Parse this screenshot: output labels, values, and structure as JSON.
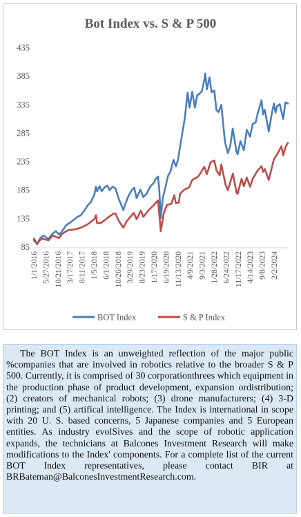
{
  "chart_data": {
    "type": "line",
    "title": "Bot Index vs. S & P 500",
    "ylim": [
      85,
      435
    ],
    "yticks": [
      85,
      135,
      185,
      235,
      285,
      335,
      385,
      435
    ],
    "grid": false,
    "legend_position": "bottom",
    "xtick_labels": [
      "1/1/2016",
      "5/27/2016",
      "10/21/2016",
      "3/17/2017",
      "8/11/2017",
      "1/5/2018",
      "6/1/2018",
      "10/26/2018",
      "3/29/2019",
      "8/23/2019",
      "1/17/2020",
      "6/19/2020",
      "11/13/2020",
      "4/9/2021",
      "9/3/2021",
      "1/28/2022",
      "6/24/2022",
      "11/17/2022",
      "4/14/2023",
      "9/8/2023",
      "2/2/2024"
    ],
    "series": [
      {
        "name": "BOT Index",
        "color": "#4a7ebb",
        "points": [
          [
            "2016-01-01",
            97
          ],
          [
            "2016-02-10",
            90
          ],
          [
            "2016-03-20",
            101
          ],
          [
            "2016-05-01",
            105
          ],
          [
            "2016-06-24",
            99
          ],
          [
            "2016-08-10",
            108
          ],
          [
            "2016-09-25",
            113
          ],
          [
            "2016-11-05",
            107
          ],
          [
            "2016-12-15",
            114
          ],
          [
            "2017-02-01",
            124
          ],
          [
            "2017-03-17",
            128
          ],
          [
            "2017-05-01",
            133
          ],
          [
            "2017-06-15",
            138
          ],
          [
            "2017-07-25",
            141
          ],
          [
            "2017-09-01",
            148
          ],
          [
            "2017-10-15",
            158
          ],
          [
            "2017-11-20",
            163
          ],
          [
            "2018-01-05",
            177
          ],
          [
            "2018-01-25",
            191
          ],
          [
            "2018-02-08",
            183
          ],
          [
            "2018-03-10",
            192
          ],
          [
            "2018-04-05",
            183
          ],
          [
            "2018-05-10",
            190
          ],
          [
            "2018-06-12",
            193
          ],
          [
            "2018-07-10",
            185
          ],
          [
            "2018-08-15",
            191
          ],
          [
            "2018-09-20",
            188
          ],
          [
            "2018-10-26",
            171
          ],
          [
            "2018-12-24",
            150
          ],
          [
            "2019-01-20",
            162
          ],
          [
            "2019-02-25",
            175
          ],
          [
            "2019-04-10",
            186
          ],
          [
            "2019-05-05",
            189
          ],
          [
            "2019-06-03",
            171
          ],
          [
            "2019-07-20",
            186
          ],
          [
            "2019-08-23",
            173
          ],
          [
            "2019-10-01",
            178
          ],
          [
            "2019-11-15",
            191
          ],
          [
            "2019-12-31",
            198
          ],
          [
            "2020-01-17",
            204
          ],
          [
            "2020-02-19",
            209
          ],
          [
            "2020-03-05",
            186
          ],
          [
            "2020-03-23",
            136
          ],
          [
            "2020-04-15",
            170
          ],
          [
            "2020-05-15",
            188
          ],
          [
            "2020-06-19",
            210
          ],
          [
            "2020-07-20",
            218
          ],
          [
            "2020-08-25",
            238
          ],
          [
            "2020-09-23",
            227
          ],
          [
            "2020-10-20",
            239
          ],
          [
            "2020-11-13",
            262
          ],
          [
            "2020-12-10",
            285
          ],
          [
            "2021-01-10",
            312
          ],
          [
            "2021-02-12",
            356
          ],
          [
            "2021-03-08",
            330
          ],
          [
            "2021-04-09",
            358
          ],
          [
            "2021-05-12",
            330
          ],
          [
            "2021-06-10",
            352
          ],
          [
            "2021-07-05",
            354
          ],
          [
            "2021-08-05",
            359
          ],
          [
            "2021-09-03",
            378
          ],
          [
            "2021-09-15",
            390
          ],
          [
            "2021-10-04",
            362
          ],
          [
            "2021-11-05",
            383
          ],
          [
            "2021-12-01",
            357
          ],
          [
            "2022-01-03",
            360
          ],
          [
            "2022-01-28",
            326
          ],
          [
            "2022-02-24",
            322
          ],
          [
            "2022-03-29",
            335
          ],
          [
            "2022-05-12",
            270
          ],
          [
            "2022-06-16",
            250
          ],
          [
            "2022-07-15",
            262
          ],
          [
            "2022-08-15",
            293
          ],
          [
            "2022-09-30",
            252
          ],
          [
            "2022-10-13",
            248
          ],
          [
            "2022-11-17",
            271
          ],
          [
            "2022-12-28",
            255
          ],
          [
            "2023-02-02",
            291
          ],
          [
            "2023-03-13",
            279
          ],
          [
            "2023-04-14",
            301
          ],
          [
            "2023-05-20",
            304
          ],
          [
            "2023-06-15",
            320
          ],
          [
            "2023-07-31",
            343
          ],
          [
            "2023-08-18",
            318
          ],
          [
            "2023-09-08",
            326
          ],
          [
            "2023-10-27",
            288
          ],
          [
            "2023-12-01",
            318
          ],
          [
            "2023-12-28",
            337
          ],
          [
            "2024-01-17",
            321
          ],
          [
            "2024-02-02",
            332
          ],
          [
            "2024-03-08",
            336
          ],
          [
            "2024-04-19",
            310
          ],
          [
            "2024-05-15",
            339
          ],
          [
            "2024-06-15",
            337
          ]
        ]
      },
      {
        "name": "S & P Index",
        "color": "#be4b48",
        "points": [
          [
            "2016-01-01",
            100
          ],
          [
            "2016-02-11",
            91
          ],
          [
            "2016-04-01",
            100
          ],
          [
            "2016-06-27",
            97
          ],
          [
            "2016-08-15",
            105
          ],
          [
            "2016-11-03",
            101
          ],
          [
            "2016-12-15",
            109
          ],
          [
            "2017-03-01",
            115
          ],
          [
            "2017-05-15",
            116
          ],
          [
            "2017-08-11",
            120
          ],
          [
            "2017-10-15",
            125
          ],
          [
            "2018-01-05",
            134
          ],
          [
            "2018-01-26",
            141
          ],
          [
            "2018-02-08",
            127
          ],
          [
            "2018-03-23",
            127
          ],
          [
            "2018-05-01",
            131
          ],
          [
            "2018-06-12",
            136
          ],
          [
            "2018-08-29",
            144
          ],
          [
            "2018-09-20",
            144
          ],
          [
            "2018-10-26",
            132
          ],
          [
            "2018-12-24",
            119
          ],
          [
            "2019-02-01",
            130
          ],
          [
            "2019-04-30",
            145
          ],
          [
            "2019-06-03",
            134
          ],
          [
            "2019-07-26",
            149
          ],
          [
            "2019-08-23",
            138
          ],
          [
            "2019-10-28",
            150
          ],
          [
            "2019-12-31",
            159
          ],
          [
            "2020-02-19",
            167
          ],
          [
            "2020-03-23",
            113
          ],
          [
            "2020-04-29",
            145
          ],
          [
            "2020-06-08",
            159
          ],
          [
            "2020-07-30",
            161
          ],
          [
            "2020-09-02",
            176
          ],
          [
            "2020-09-23",
            162
          ],
          [
            "2020-10-28",
            163
          ],
          [
            "2020-11-13",
            179
          ],
          [
            "2021-01-04",
            186
          ],
          [
            "2021-03-04",
            190
          ],
          [
            "2021-04-09",
            203
          ],
          [
            "2021-06-15",
            208
          ],
          [
            "2021-07-20",
            215
          ],
          [
            "2021-09-03",
            226
          ],
          [
            "2021-10-04",
            213
          ],
          [
            "2021-11-18",
            234
          ],
          [
            "2022-01-03",
            237
          ],
          [
            "2022-01-28",
            220
          ],
          [
            "2022-03-08",
            211
          ],
          [
            "2022-03-29",
            230
          ],
          [
            "2022-05-20",
            194
          ],
          [
            "2022-06-16",
            185
          ],
          [
            "2022-08-16",
            214
          ],
          [
            "2022-09-30",
            181
          ],
          [
            "2022-10-12",
            178
          ],
          [
            "2022-11-30",
            205
          ],
          [
            "2022-12-28",
            192
          ],
          [
            "2023-02-02",
            207
          ],
          [
            "2023-03-13",
            191
          ],
          [
            "2023-04-14",
            205
          ],
          [
            "2023-06-15",
            220
          ],
          [
            "2023-07-31",
            227
          ],
          [
            "2023-08-18",
            217
          ],
          [
            "2023-09-08",
            222
          ],
          [
            "2023-10-27",
            203
          ],
          [
            "2023-12-28",
            239
          ],
          [
            "2024-02-02",
            247
          ],
          [
            "2024-03-28",
            262
          ],
          [
            "2024-04-19",
            246
          ],
          [
            "2024-05-21",
            262
          ],
          [
            "2024-06-15",
            268
          ]
        ]
      }
    ]
  },
  "description": "The BOT Index is an unweighted reflection of the major public %companies that are involved in robotics relative to the broader S & P 500. Currently, it is comprised of 30 corporationthrees which equipment in the production phase of product development, expansion ordistribution; (2) creators of mechanical robots; (3) drone manufacturers; (4) 3-D printing; and (5) artifical intelligence. The Index is international in scope with 20 U. S. based concerns, 5 Japanese companies and 5 European entities. As industry evolSives and the scope of robotic application expands, the technicians at Balcones Investment Research will make modifications to the Index' components. For a  complete list of the current BOT Index representatives, please contact BIR at BRBateman@BalconesInvestmentResearch.com."
}
